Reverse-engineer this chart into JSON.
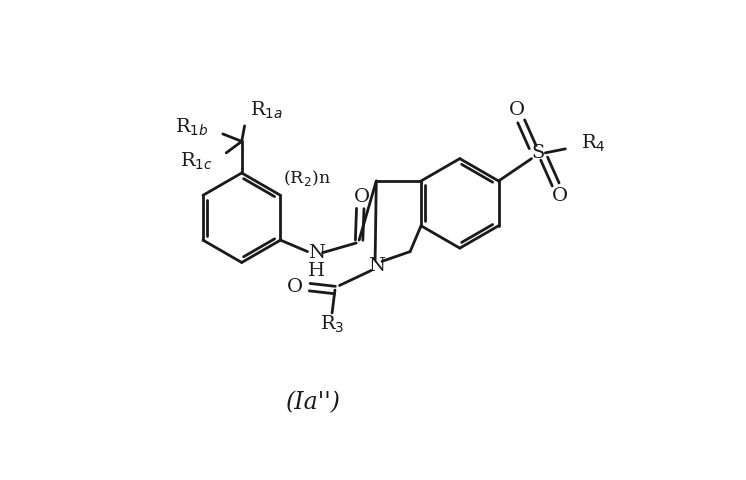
{
  "background_color": "#ffffff",
  "line_color": "#1a1a1a",
  "line_width": 2.0,
  "font_size": 14,
  "title_fontsize": 17,
  "fig_width": 7.46,
  "fig_height": 4.8,
  "dpi": 100,
  "xlim": [
    0,
    10
  ],
  "ylim": [
    0,
    6.44
  ]
}
